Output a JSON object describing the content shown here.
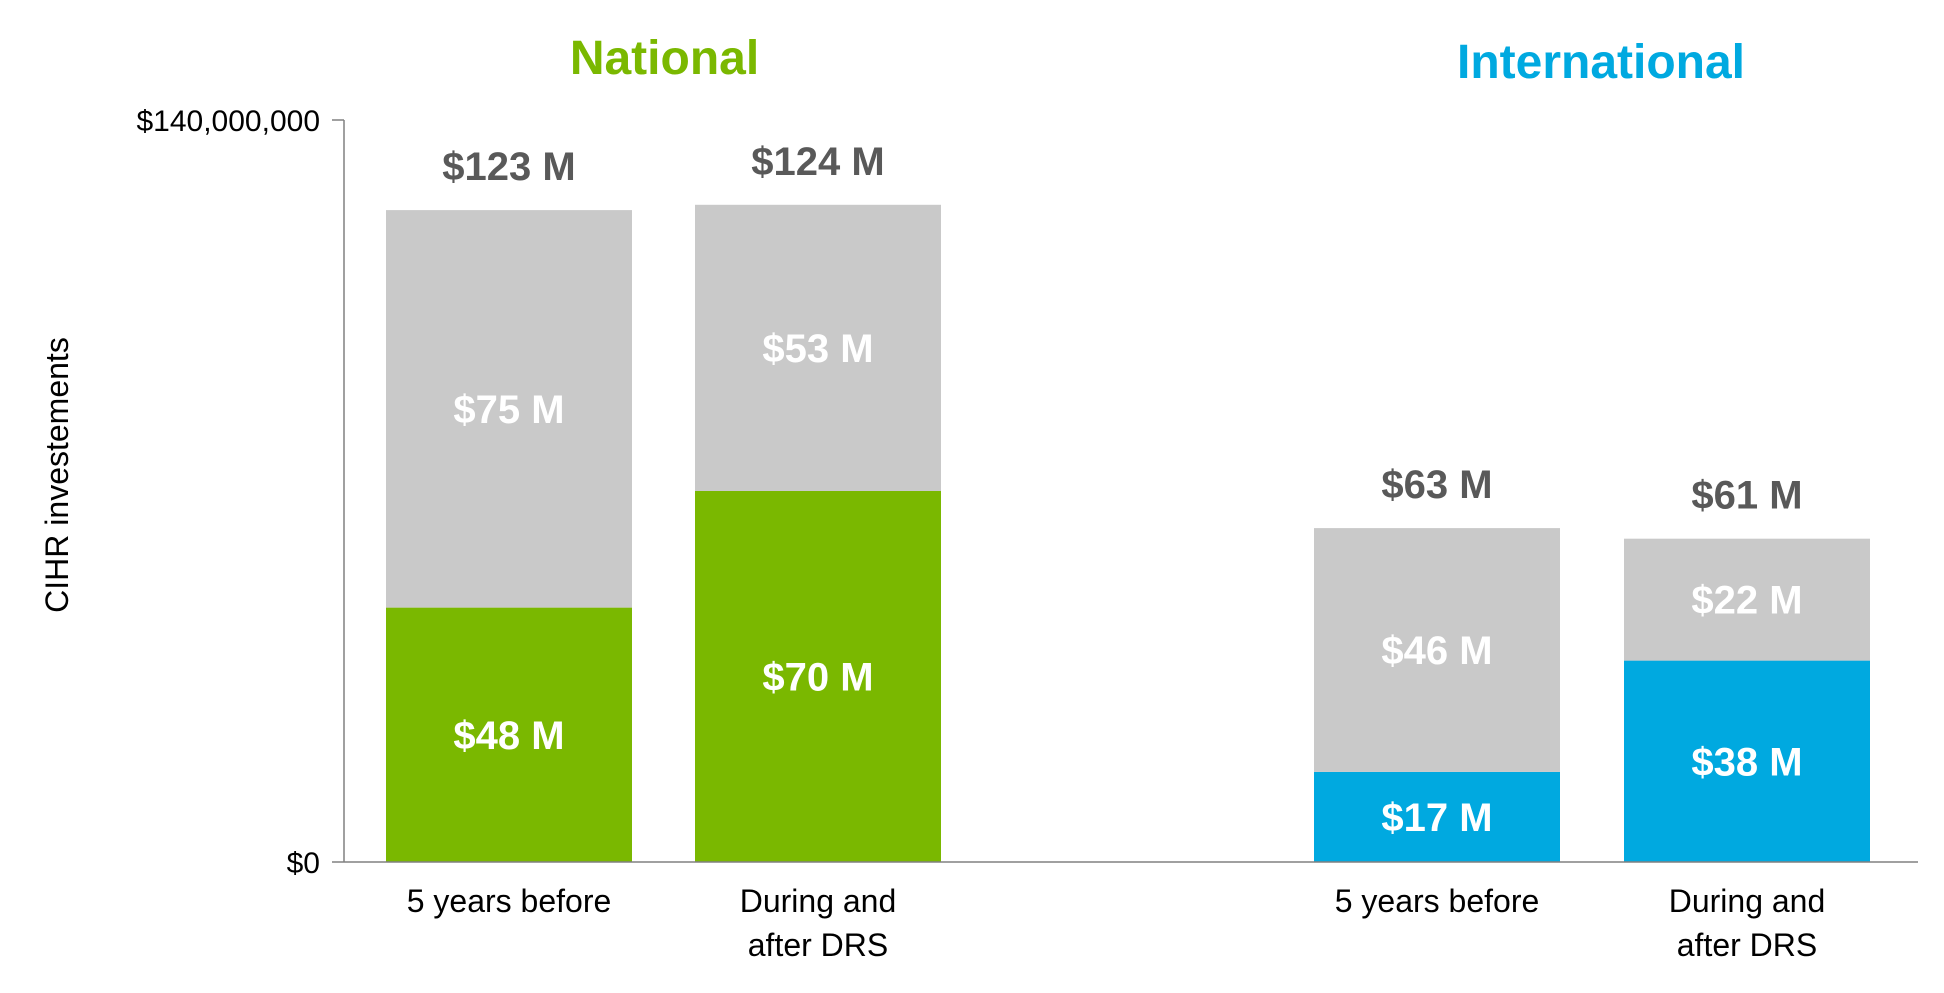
{
  "chart_data": {
    "type": "bar",
    "stacked": true,
    "ylabel": "CIHR investements",
    "ylim": [
      0,
      140000000
    ],
    "yticks": [
      {
        "value": 0,
        "label": "$0"
      },
      {
        "value": 140000000,
        "label": "$140,000,000"
      }
    ],
    "colors": {
      "other": "#c9c9c9",
      "National": "#7ab800",
      "International": "#00a9e0"
    },
    "groups": [
      {
        "name": "National",
        "title": "National",
        "color": "#7ab800",
        "bars": [
          {
            "category": "5 years before",
            "category_lines": [
              "5 years before"
            ],
            "total": 123000000,
            "total_label": "$123 M",
            "colored": 48000000,
            "colored_label": "$48 M",
            "other": 75000000,
            "other_label": "$75 M"
          },
          {
            "category": "During and after DRS",
            "category_lines": [
              "During and",
              "after DRS"
            ],
            "total": 124000000,
            "total_label": "$124 M",
            "colored": 70000000,
            "colored_label": "$70 M",
            "other": 53000000,
            "other_label": "$53 M"
          }
        ]
      },
      {
        "name": "International",
        "title": "International",
        "color": "#00a9e0",
        "bars": [
          {
            "category": "5 years before",
            "category_lines": [
              "5 years before"
            ],
            "total": 63000000,
            "total_label": "$63 M",
            "colored": 17000000,
            "colored_label": "$17 M",
            "other": 46000000,
            "other_label": "$46 M"
          },
          {
            "category": "During and after DRS",
            "category_lines": [
              "During and",
              "after DRS"
            ],
            "total": 61000000,
            "total_label": "$61 M",
            "colored": 38000000,
            "colored_label": "$38 M",
            "other": 22000000,
            "other_label": "$22 M"
          }
        ]
      }
    ]
  }
}
